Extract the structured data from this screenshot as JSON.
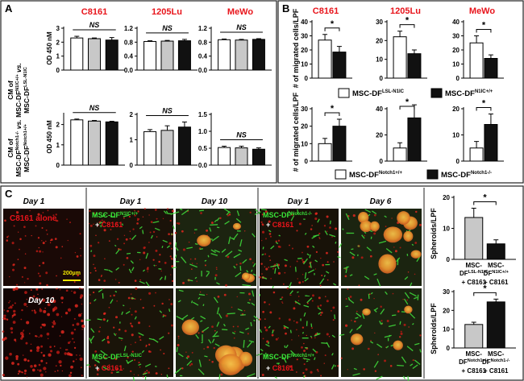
{
  "colors": {
    "red_label": "#e8141b",
    "green_label": "#39e639",
    "scale_bar": "#f2e600",
    "panel_border": "#222222",
    "bar_white": "#ffffff",
    "bar_gray": "#c8c8c8",
    "bar_black": "#111111"
  },
  "panel_A": {
    "letter": "A",
    "col_titles": [
      "C8161",
      "1205Lu",
      "MeWo"
    ],
    "row1_ylabel_main": "CM of",
    "row1_ylabel_cond": "MSC-DF",
    "row1_ylabel_sup1": "N1IC+/+",
    "row1_ylabel_vs": "vs.",
    "row1_ylabel_sup2": "LSL-N1IC",
    "row2_ylabel_main": "CM of",
    "row2_ylabel_cond": "MSC-DF",
    "row2_ylabel_sup1": "Notch1-/-",
    "row2_ylabel_vs": "vs.",
    "row2_ylabel_sup2": "Notch1+/+",
    "od_label": "OD 450 nM",
    "ns": "NS"
  },
  "panel_B": {
    "letter": "B",
    "col_titles": [
      "C8161",
      "1205Lu",
      "MeWo"
    ],
    "ylabel": "# of migrated cells/LPF",
    "star": "*",
    "legend1_a": "MSC-DF",
    "legend1_a_sup": "LSL-N1IC",
    "legend1_b": "MSC-DF",
    "legend1_b_sup": "N1IC+/+",
    "legend2_a": "MSC-DF",
    "legend2_a_sup": "Notch1+/+",
    "legend2_b": "MSC-DF",
    "legend2_b_sup": "Notch1-/-"
  },
  "panel_C": {
    "letter": "C",
    "day1": "Day 1",
    "day10": "Day 10",
    "day6": "Day 6",
    "c8161_alone": "C8161 alone",
    "scale": "200µm",
    "day10_img": "Day 10",
    "plus": "+",
    "c8161": "C8161",
    "mscdf": "MSC-DF",
    "n1ic": "N1IC+/+",
    "lsl": "LSL-N1IC",
    "notch_ko": "Notch1-/-",
    "notch_wt": "Notch1+/+",
    "spheroids": "Spheroids/LPF",
    "star": "*"
  },
  "chart_data": [
    {
      "type": "bar",
      "panel": "A",
      "row": 1,
      "title": "C8161",
      "ylabel": "OD 450 nM",
      "ylim": [
        0,
        3.0
      ],
      "yticks": [
        0,
        1.0,
        2.0,
        3.0
      ],
      "values": [
        2.3,
        2.25,
        2.15
      ],
      "errors": [
        0.12,
        0.05,
        0.18
      ],
      "annotation": "NS"
    },
    {
      "type": "bar",
      "panel": "A",
      "row": 1,
      "title": "1205Lu",
      "ylim": [
        0,
        1.2
      ],
      "yticks": [
        0,
        0.4,
        0.8,
        1.2
      ],
      "values": [
        0.82,
        0.83,
        0.84
      ],
      "errors": [
        0.02,
        0.02,
        0.04
      ],
      "annotation": "NS"
    },
    {
      "type": "bar",
      "panel": "A",
      "row": 1,
      "title": "MeWo",
      "ylim": [
        0,
        1.2
      ],
      "yticks": [
        0,
        0.4,
        0.8,
        1.2
      ],
      "values": [
        0.87,
        0.86,
        0.88
      ],
      "errors": [
        0.02,
        0.02,
        0.02
      ],
      "annotation": "NS"
    },
    {
      "type": "bar",
      "panel": "A",
      "row": 2,
      "ylabel": "OD 450 nM",
      "ylim": [
        0,
        2.5
      ],
      "yticks": [
        0,
        1.0,
        2.0
      ],
      "values": [
        2.23,
        2.17,
        2.13
      ],
      "errors": [
        0.04,
        0.03,
        0.03
      ],
      "annotation": "NS"
    },
    {
      "type": "bar",
      "panel": "A",
      "row": 2,
      "ylim": [
        0,
        2.0
      ],
      "yticks": [
        0,
        1.0,
        2.0
      ],
      "values": [
        1.32,
        1.37,
        1.5
      ],
      "errors": [
        0.08,
        0.18,
        0.2
      ],
      "annotation": "NS"
    },
    {
      "type": "bar",
      "panel": "A",
      "row": 2,
      "ylim": [
        0,
        1.5
      ],
      "yticks": [
        0,
        0.5,
        1.0,
        1.5
      ],
      "values": [
        0.52,
        0.51,
        0.47
      ],
      "errors": [
        0.04,
        0.05,
        0.04
      ],
      "annotation": "NS"
    },
    {
      "type": "bar",
      "panel": "B",
      "row": 1,
      "title": "C8161",
      "ylabel": "# of migrated cells/LPF",
      "ylim": [
        0,
        40
      ],
      "yticks": [
        0,
        10,
        20,
        30,
        40
      ],
      "series": [
        {
          "name": "MSC-DF LSL-N1IC",
          "values": [
            27
          ]
        },
        {
          "name": "MSC-DF N1IC+/+",
          "values": [
            18.5
          ]
        }
      ],
      "errors": [
        4,
        4
      ],
      "annotation": "*"
    },
    {
      "type": "bar",
      "panel": "B",
      "row": 1,
      "title": "1205Lu",
      "ylim": [
        0,
        30
      ],
      "yticks": [
        0,
        10,
        20,
        30
      ],
      "series": [
        {
          "name": "MSC-DF LSL-N1IC",
          "values": [
            22
          ]
        },
        {
          "name": "MSC-DF N1IC+/+",
          "values": [
            13
          ]
        }
      ],
      "errors": [
        3,
        2
      ],
      "annotation": "*"
    },
    {
      "type": "bar",
      "panel": "B",
      "row": 1,
      "title": "MeWo",
      "ylim": [
        0,
        40
      ],
      "yticks": [
        0,
        10,
        20,
        30,
        40
      ],
      "series": [
        {
          "name": "MSC-DF LSL-N1IC",
          "values": [
            25
          ]
        },
        {
          "name": "MSC-DF N1IC+/+",
          "values": [
            14
          ]
        }
      ],
      "errors": [
        5,
        2.5
      ],
      "annotation": "*"
    },
    {
      "type": "bar",
      "panel": "B",
      "row": 2,
      "ylabel": "# of migrated cells/LPF",
      "ylim": [
        0,
        30
      ],
      "yticks": [
        0,
        10,
        20,
        30
      ],
      "series": [
        {
          "name": "MSC-DF Notch1+/+",
          "values": [
            10
          ]
        },
        {
          "name": "MSC-DF Notch1-/-",
          "values": [
            20
          ]
        }
      ],
      "errors": [
        3,
        4
      ],
      "annotation": "*"
    },
    {
      "type": "bar",
      "panel": "B",
      "row": 2,
      "ylim": [
        0,
        40
      ],
      "yticks": [
        0,
        20,
        40
      ],
      "series": [
        {
          "name": "MSC-DF Notch1+/+",
          "values": [
            10
          ]
        },
        {
          "name": "MSC-DF Notch1-/-",
          "values": [
            33
          ]
        }
      ],
      "errors": [
        4,
        10
      ],
      "annotation": "*"
    },
    {
      "type": "bar",
      "panel": "B",
      "row": 2,
      "ylim": [
        0,
        20
      ],
      "yticks": [
        0,
        10,
        20
      ],
      "series": [
        {
          "name": "MSC-DF Notch1+/+",
          "values": [
            5
          ]
        },
        {
          "name": "MSC-DF Notch1-/-",
          "values": [
            14
          ]
        }
      ],
      "errors": [
        2.5,
        4
      ],
      "annotation": "*"
    },
    {
      "type": "bar",
      "panel": "C",
      "ylabel": "Spheroids/LPF",
      "ylim": [
        0,
        20
      ],
      "yticks": [
        0,
        10,
        20
      ],
      "categories": [
        "MSC-DF LSL-N1IC + C8161",
        "MSC-DF N1IC+/+ + C8161"
      ],
      "values": [
        13.5,
        5
      ],
      "errors": [
        3,
        1.3
      ],
      "annotation": "*"
    },
    {
      "type": "bar",
      "panel": "C",
      "ylabel": "Spheroids/LPF",
      "ylim": [
        0,
        30
      ],
      "yticks": [
        0,
        10,
        20,
        30
      ],
      "categories": [
        "MSC-DF Notch1+/+ + C8161",
        "MSC-DF Notch1-/- + C8161"
      ],
      "values": [
        12.5,
        24.5
      ],
      "errors": [
        1.2,
        1.5
      ],
      "annotation": "*"
    }
  ]
}
